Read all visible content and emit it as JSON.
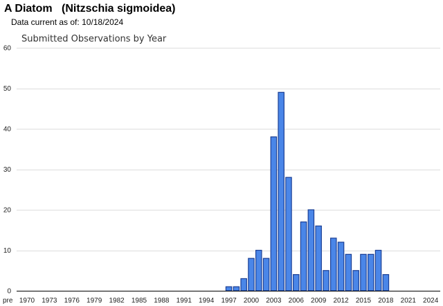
{
  "header": {
    "common_name": "A Diatom",
    "scientific_name": "(Nitzschia sigmoidea)",
    "data_current_label": "Data current as of:",
    "data_current_date": "10/18/2024"
  },
  "chart_data": {
    "type": "bar",
    "title": "Submitted Observations by Year",
    "xlabel": "",
    "ylabel": "",
    "ylim": [
      0,
      60
    ],
    "y_ticks": [
      0,
      10,
      20,
      30,
      40,
      50,
      60
    ],
    "grid": true,
    "categories": [
      "pre",
      "1970",
      "1971",
      "1972",
      "1973",
      "1974",
      "1975",
      "1976",
      "1977",
      "1978",
      "1979",
      "1980",
      "1981",
      "1982",
      "1983",
      "1984",
      "1985",
      "1986",
      "1987",
      "1988",
      "1989",
      "1990",
      "1991",
      "1992",
      "1993",
      "1994",
      "1995",
      "1996",
      "1997",
      "1998",
      "1999",
      "2000",
      "2001",
      "2002",
      "2003",
      "2004",
      "2005",
      "2006",
      "2007",
      "2008",
      "2009",
      "2010",
      "2011",
      "2012",
      "2013",
      "2014",
      "2015",
      "2016",
      "2017",
      "2018",
      "2019",
      "2020",
      "2021",
      "2022",
      "2023",
      "2024"
    ],
    "values": [
      0,
      0,
      0,
      0,
      0,
      0,
      0,
      0,
      0,
      0,
      0,
      0,
      0,
      0,
      0,
      0,
      0,
      0,
      0,
      0,
      0,
      0,
      0,
      0,
      0,
      0,
      0,
      0,
      1,
      1,
      3,
      8,
      10,
      8,
      38,
      49,
      28,
      4,
      17,
      20,
      16,
      5,
      13,
      12,
      9,
      5,
      9,
      9,
      10,
      4,
      0,
      0,
      0,
      0,
      0,
      0
    ],
    "x_tick_labels": [
      "pre",
      "1970",
      "1973",
      "1976",
      "1979",
      "1982",
      "1985",
      "1988",
      "1991",
      "1994",
      "1997",
      "2000",
      "2003",
      "2006",
      "2009",
      "2012",
      "2015",
      "2018",
      "2021",
      "2024"
    ],
    "colors": {
      "bar_fill": "#4a86e8",
      "bar_stroke": "#1c3f94",
      "grid": "#dddddd",
      "axis": "#000000"
    }
  }
}
